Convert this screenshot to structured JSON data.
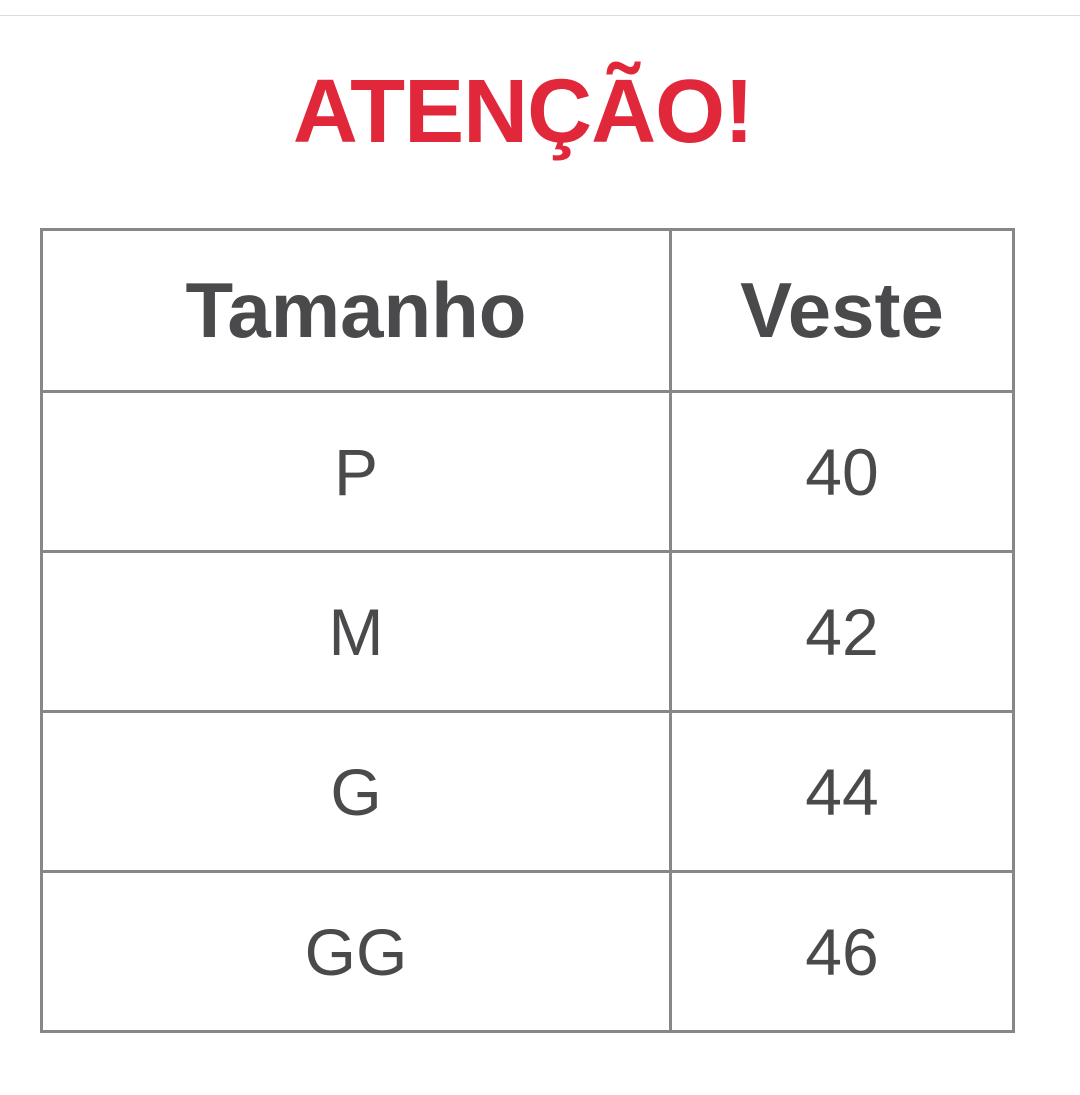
{
  "title": "ATENÇÃO!",
  "colors": {
    "title": "#e1283a",
    "text": "#4a4a4c",
    "border": "#878787"
  },
  "table": {
    "headers": [
      "Tamanho",
      "Veste"
    ],
    "rows": [
      [
        "P",
        "40"
      ],
      [
        "M",
        "42"
      ],
      [
        "G",
        "44"
      ],
      [
        "GG",
        "46"
      ]
    ]
  }
}
